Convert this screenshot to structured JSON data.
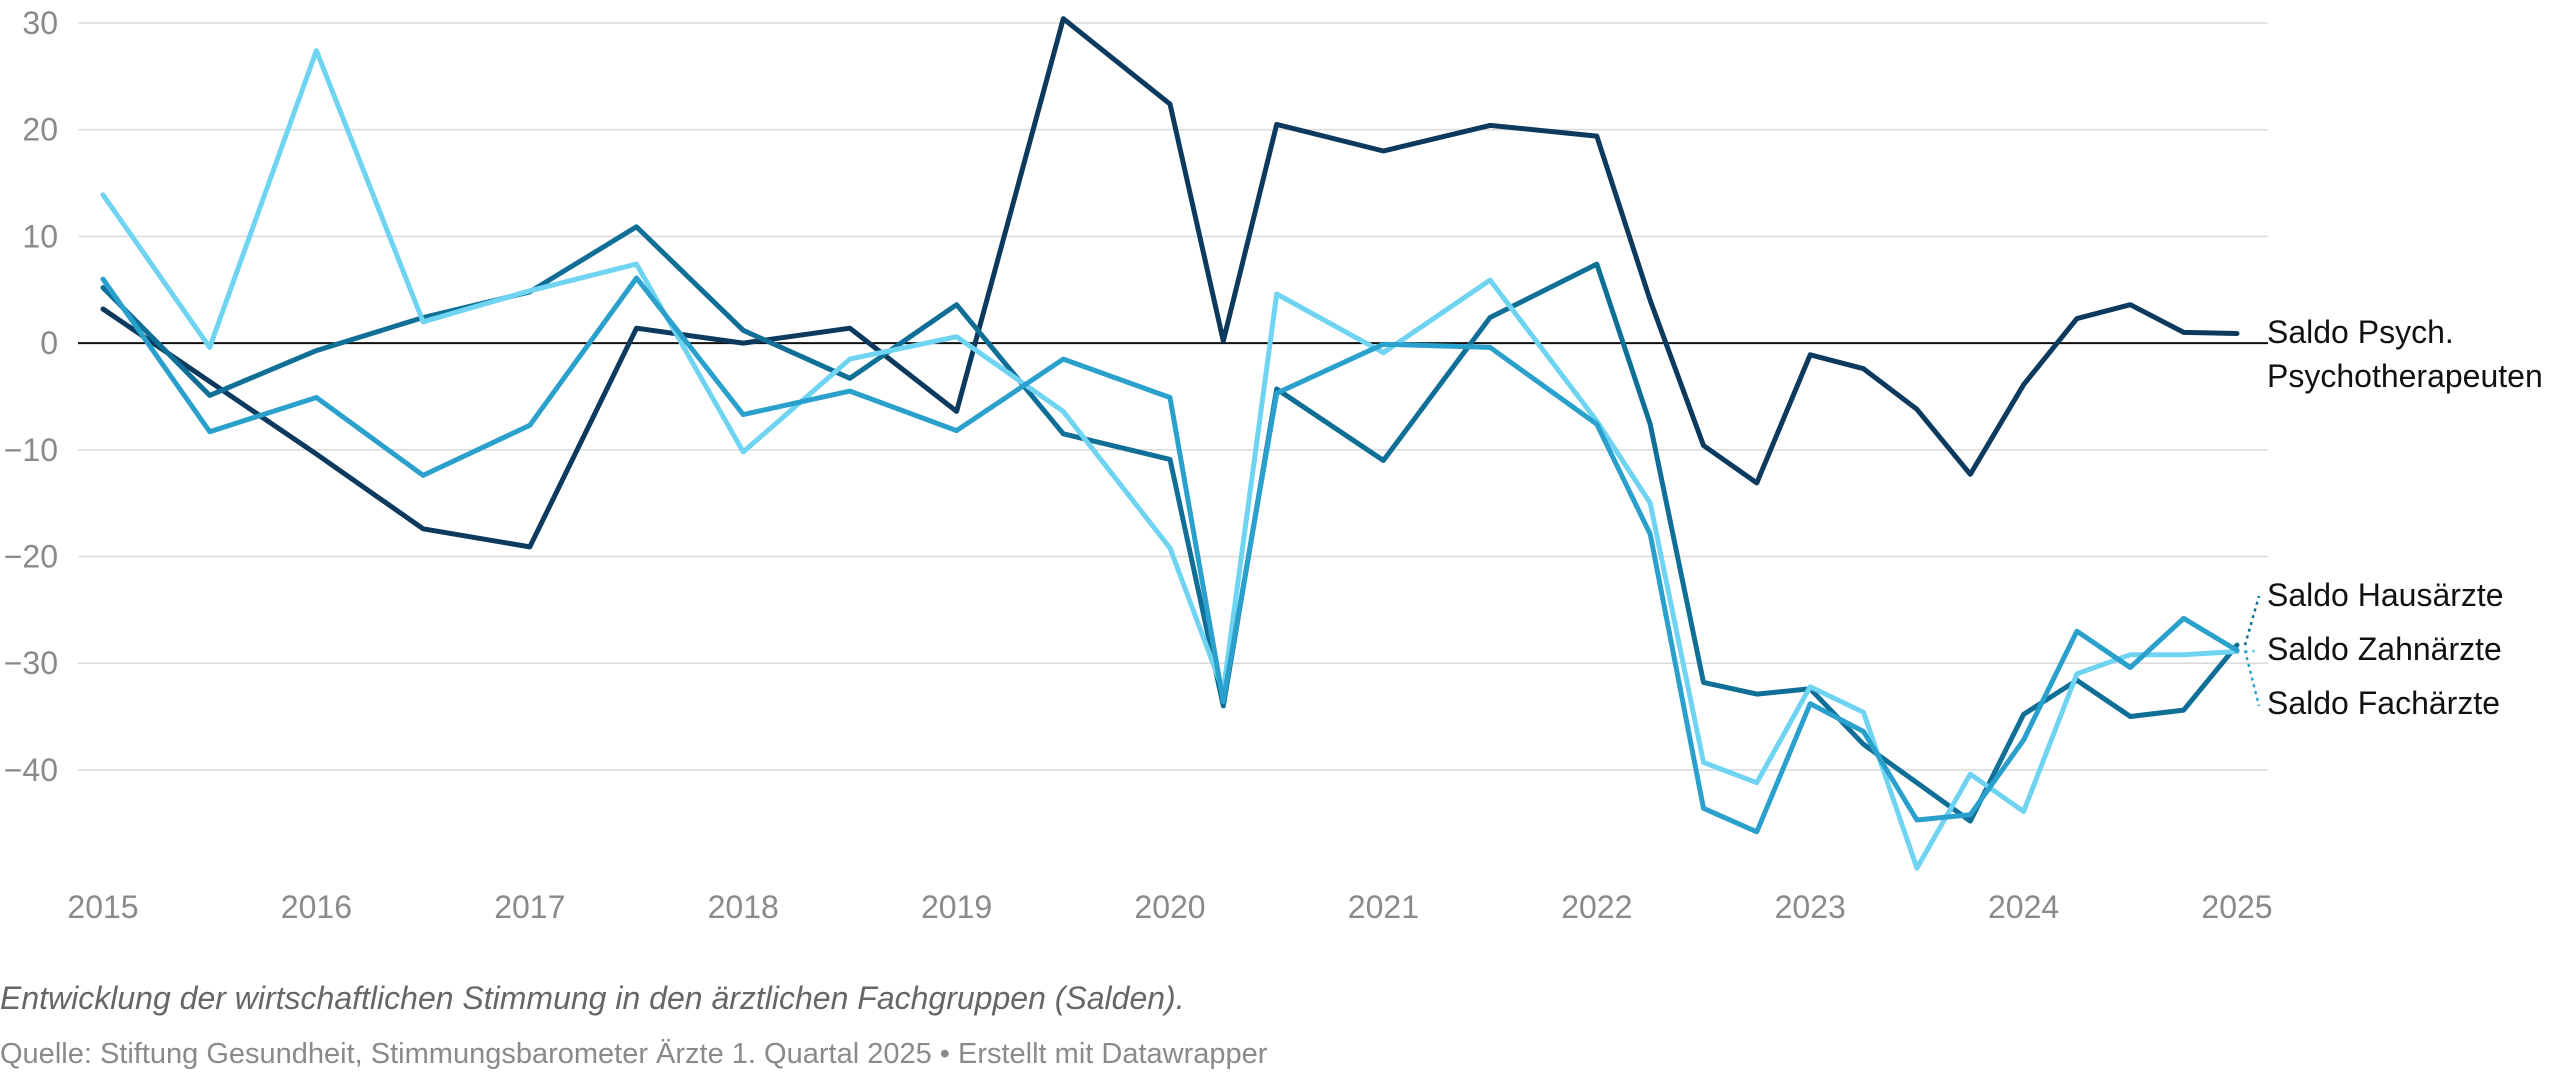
{
  "chart_data": {
    "type": "line",
    "x_ticks": [
      "2015",
      "2016",
      "2017",
      "2018",
      "2019",
      "2020",
      "2021",
      "2022",
      "2023",
      "2024",
      "2025"
    ],
    "y_ticks": [
      "30",
      "20",
      "10",
      "0",
      "−10",
      "−20",
      "−30",
      "−40"
    ],
    "ylim": [
      -50,
      31
    ],
    "xlim": [
      2015,
      2025
    ],
    "grid": true,
    "series": [
      {
        "name": "Saldo Psych. Psychotherapeuten",
        "label_lines": [
          "Saldo Psych.",
          "Psychotherapeuten"
        ],
        "color": "#0b3a5e",
        "x": [
          2015,
          2016,
          2016.5,
          2017,
          2017.5,
          2018,
          2018.5,
          2019,
          2019.5,
          2020,
          2020.25,
          2020.5,
          2021,
          2021.5,
          2022,
          2022.25,
          2022.5,
          2022.75,
          2023,
          2023.25,
          2023.5,
          2023.75,
          2024,
          2024.25,
          2024.5,
          2024.75,
          2025
        ],
        "values": [
          3.2,
          -10.4,
          -17.4,
          -19.1,
          1.4,
          0.0,
          1.4,
          -6.4,
          30.4,
          22.4,
          0.2,
          20.5,
          18.0,
          20.4,
          19.4,
          4.0,
          -9.6,
          -13.1,
          -1.1,
          -2.4,
          -6.2,
          -12.3,
          -3.9,
          2.3,
          3.6,
          1.0,
          0.9
        ]
      },
      {
        "name": "Saldo Hausärzte",
        "label_lines": [
          "Saldo Hausärzte"
        ],
        "color": "#0f6f96",
        "x": [
          2015,
          2015.5,
          2016,
          2016.5,
          2017,
          2017.5,
          2018,
          2018.5,
          2019,
          2019.5,
          2020,
          2020.25,
          2020.5,
          2021,
          2021.5,
          2022,
          2022.25,
          2022.5,
          2022.75,
          2023,
          2023.25,
          2023.5,
          2023.75,
          2024,
          2024.25,
          2024.5,
          2024.75,
          2025
        ],
        "values": [
          5.2,
          -4.9,
          -0.7,
          2.4,
          4.8,
          10.9,
          1.2,
          -3.3,
          3.6,
          -8.5,
          -10.9,
          -34.0,
          -4.3,
          -11.0,
          2.4,
          7.4,
          -7.6,
          -31.8,
          -32.9,
          -32.4,
          -37.6,
          -41.2,
          -44.8,
          -34.8,
          -31.6,
          -35.0,
          -34.4,
          -28.3
        ]
      },
      {
        "name": "Saldo Zahnärzte",
        "label_lines": [
          "Saldo Zahnärzte"
        ],
        "color": "#6fd3f2",
        "x": [
          2015,
          2015.5,
          2016,
          2016.5,
          2017,
          2017.5,
          2018,
          2018.5,
          2019,
          2019.5,
          2020,
          2020.25,
          2020.5,
          2021,
          2021.5,
          2022,
          2022.25,
          2022.5,
          2022.75,
          2023,
          2023.25,
          2023.5,
          2023.75,
          2024,
          2024.25,
          2024.5,
          2024.75,
          2025
        ],
        "values": [
          13.9,
          -0.4,
          27.4,
          2.0,
          4.9,
          7.4,
          -10.2,
          -1.5,
          0.6,
          -6.4,
          -19.2,
          -32.6,
          4.6,
          -0.9,
          5.9,
          -7.3,
          -15.0,
          -39.3,
          -41.2,
          -32.2,
          -34.6,
          -49.2,
          -40.4,
          -43.9,
          -31.0,
          -29.2,
          -29.2,
          -28.9
        ]
      },
      {
        "name": "Saldo Fachärzte",
        "label_lines": [
          "Saldo Fachärzte"
        ],
        "color": "#2aa0cc",
        "x": [
          2015,
          2015.5,
          2016,
          2016.5,
          2017,
          2017.5,
          2018,
          2018.5,
          2019,
          2019.5,
          2020,
          2020.25,
          2020.5,
          2021,
          2021.5,
          2022,
          2022.25,
          2022.5,
          2022.75,
          2023,
          2023.25,
          2023.5,
          2023.75,
          2024,
          2024.25,
          2024.5,
          2024.75,
          2025
        ],
        "values": [
          6.0,
          -8.3,
          -5.1,
          -12.4,
          -7.7,
          6.1,
          -6.7,
          -4.5,
          -8.2,
          -1.5,
          -5.1,
          -33.6,
          -4.7,
          -0.1,
          -0.4,
          -7.6,
          -17.9,
          -43.6,
          -45.8,
          -33.8,
          -36.4,
          -44.7,
          -44.2,
          -37.2,
          -27.0,
          -30.4,
          -25.8,
          -28.8
        ]
      }
    ]
  },
  "caption": "Entwicklung der wirtschaftlichen Stimmung in den ärztlichen Fachgruppen (Salden).",
  "source": "Quelle: Stiftung Gesundheit, Stimmungsbarometer Ärzte 1. Quartal 2025 • Erstellt mit Datawrapper"
}
